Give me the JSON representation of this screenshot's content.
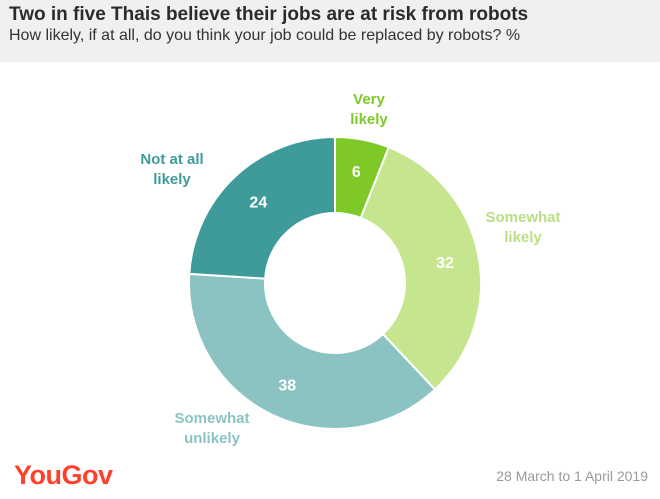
{
  "header": {
    "title": "Two in five Thais believe their jobs are at risk from robots",
    "subtitle": "How likely, if at all, do you think your job could be replaced by robots? %"
  },
  "footer": {
    "logo": "YouGov",
    "date": "28 March to 1 April 2019"
  },
  "chart_data": {
    "type": "pie",
    "donut": true,
    "title": "Two in five Thais believe their jobs are at risk from robots",
    "subtitle": "How likely, if at all, do you think your job could be replaced by robots? %",
    "slices": [
      {
        "label": [
          "Very",
          "likely"
        ],
        "value": 6,
        "color": "#7ec928",
        "label_color": "#7ec928"
      },
      {
        "label": [
          "Somewhat",
          "likely"
        ],
        "value": 32,
        "color": "#c5e68f",
        "label_color": "#b9df83"
      },
      {
        "label": [
          "Somewhat",
          "unlikely"
        ],
        "value": 38,
        "color": "#8bc3c3",
        "label_color": "#8bc3c3"
      },
      {
        "label": [
          "Not at all",
          "likely"
        ],
        "value": 24,
        "color": "#3f9a9a",
        "label_color": "#3f9a9a"
      }
    ],
    "legend": "none",
    "start": "top",
    "direction": "clockwise"
  }
}
